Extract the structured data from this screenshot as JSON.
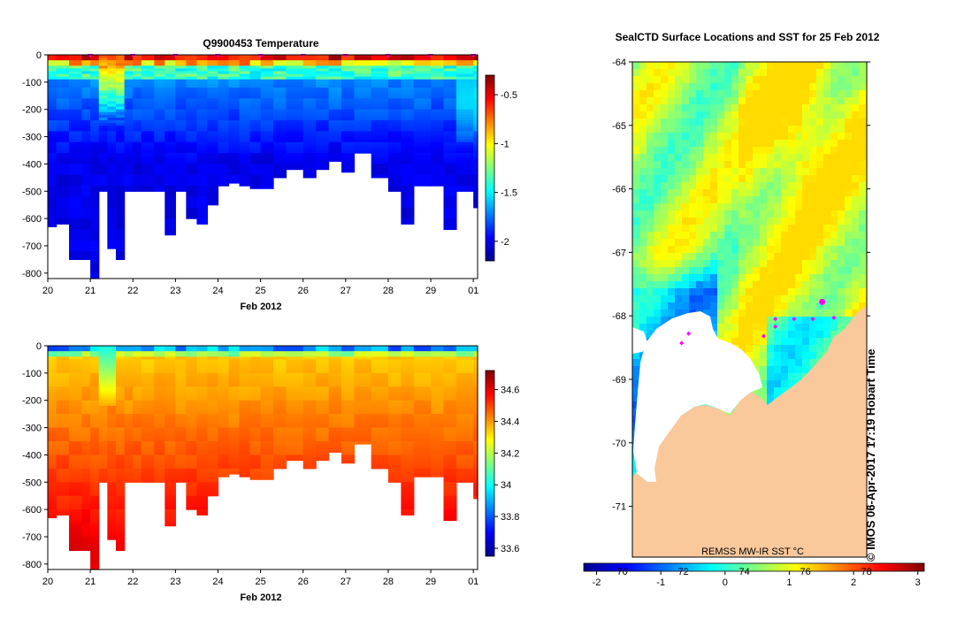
{
  "colors": {
    "jet": [
      "#00008f",
      "#0000ff",
      "#007fff",
      "#00ffff",
      "#7fff7f",
      "#ffff00",
      "#ff7f00",
      "#ff0000",
      "#7f0000"
    ],
    "land": "#f9c89b",
    "ice": "#ffffff",
    "marker": "#ff00ff",
    "axis": "#000000"
  },
  "chart_data": [
    {
      "id": "temperature",
      "type": "heatmap",
      "title": "Q9900453  Temperature",
      "xlabel": "Feb 2012",
      "ylabel": "",
      "x_ticks": [
        "20",
        "21",
        "22",
        "23",
        "24",
        "25",
        "26",
        "27",
        "28",
        "29",
        "01"
      ],
      "xlim": [
        20,
        30.1
      ],
      "y_ticks": [
        "0",
        "-100",
        "-200",
        "-300",
        "-400",
        "-500",
        "-600",
        "-700",
        "-800"
      ],
      "ylim": [
        -820,
        0
      ],
      "colorbar": {
        "ticks": [
          "-0.5",
          "-1",
          "-1.5",
          "-2"
        ],
        "tick_values": [
          -0.5,
          -1,
          -1.5,
          -2
        ],
        "range": [
          -2.2,
          -0.3
        ]
      },
      "profile_days": [
        20,
        20.2,
        20.5,
        20.8,
        21,
        21.2,
        21.4,
        21.6,
        21.8,
        22,
        22.2,
        22.5,
        22.75,
        23,
        23.25,
        23.5,
        23.75,
        24,
        24.25,
        24.5,
        24.75,
        25,
        25.3,
        25.6,
        26,
        26.3,
        26.6,
        26.9,
        27.2,
        27.6,
        28,
        28.3,
        28.6,
        29,
        29.3,
        29.6,
        30
      ],
      "profile_max_depth": [
        -630,
        -620,
        -750,
        -750,
        -820,
        -500,
        -710,
        -750,
        -500,
        -500,
        -500,
        -500,
        -660,
        -500,
        -600,
        -620,
        -550,
        -480,
        -470,
        -480,
        -490,
        -490,
        -450,
        -420,
        -450,
        -420,
        -390,
        -430,
        -360,
        -450,
        -500,
        -620,
        -480,
        -480,
        -640,
        -500,
        -560
      ],
      "surface_markers": [
        21,
        22,
        23,
        24,
        25,
        26,
        27,
        28,
        29,
        30
      ]
    },
    {
      "id": "salinity",
      "type": "heatmap",
      "title": "",
      "xlabel": "Feb 2012",
      "ylabel": "",
      "x_ticks": [
        "20",
        "21",
        "22",
        "23",
        "24",
        "25",
        "26",
        "27",
        "28",
        "29",
        "01"
      ],
      "xlim": [
        20,
        30.1
      ],
      "y_ticks": [
        "0",
        "-100",
        "-200",
        "-300",
        "-400",
        "-500",
        "-600",
        "-700",
        "-800"
      ],
      "ylim": [
        -820,
        0
      ],
      "colorbar": {
        "ticks": [
          "34.6",
          "34.4",
          "34.2",
          "34",
          "33.8",
          "33.6"
        ],
        "tick_values": [
          34.6,
          34.4,
          34.2,
          34,
          33.8,
          33.6
        ],
        "range": [
          33.55,
          34.72
        ]
      }
    },
    {
      "id": "sst-map",
      "type": "heatmap",
      "title": "SealCTD Surface Locations and SST for 25 Feb 2012",
      "xlabel": "",
      "ylabel": "",
      "lat_ticks": [
        "-64",
        "-65",
        "-66",
        "-67",
        "-68",
        "-69",
        "-70",
        "-71"
      ],
      "lat_range": [
        -71.8,
        -64
      ],
      "colorbar": {
        "label": "REMSS MW-IR SST °C",
        "ticks_top": [
          "70",
          "72",
          "74",
          "76",
          "78"
        ],
        "ticks_bottom": [
          "-2",
          "-1",
          "0",
          "1",
          "2",
          "3"
        ],
        "range": [
          -2.2,
          3.1
        ]
      },
      "credit": "© IMOS 06-Apr-2017 17:19 Hobart Time",
      "seal_locations": [
        {
          "lon_frac": 0.81,
          "lat": -67.78,
          "big": true
        },
        {
          "lon_frac": 0.61,
          "lat": -68.05
        },
        {
          "lon_frac": 0.69,
          "lat": -68.05
        },
        {
          "lon_frac": 0.77,
          "lat": -68.05
        },
        {
          "lon_frac": 0.61,
          "lat": -68.17
        },
        {
          "lon_frac": 0.86,
          "lat": -68.03
        },
        {
          "lon_frac": 0.56,
          "lat": -68.32
        },
        {
          "lon_frac": 0.24,
          "lat": -68.28
        },
        {
          "lon_frac": 0.21,
          "lat": -68.43
        }
      ]
    }
  ]
}
